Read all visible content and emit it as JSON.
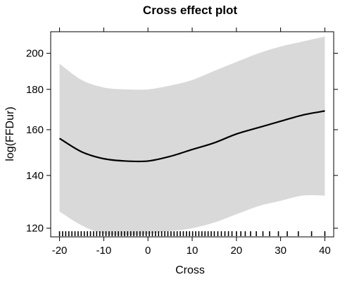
{
  "chart_data": {
    "type": "line",
    "title": "Cross effect plot",
    "xlabel": "Cross",
    "ylabel": "log(FFDur)",
    "y_scale": "log",
    "xlim": [
      -22,
      42
    ],
    "ylim": [
      117,
      213
    ],
    "x_ticks": [
      -20,
      -10,
      0,
      10,
      20,
      30,
      40
    ],
    "y_ticks": [
      120,
      140,
      160,
      180,
      200
    ],
    "series": [
      {
        "x": [
          -20,
          -15,
          -10,
          -5,
          0,
          5,
          10,
          15,
          20,
          25,
          30,
          35,
          40
        ],
        "y": [
          156,
          150,
          147,
          146,
          146,
          148,
          151,
          154,
          158,
          161,
          164,
          167,
          169
        ],
        "lower": [
          126,
          121,
          118,
          117.5,
          118,
          119,
          120,
          122,
          125,
          128,
          130,
          132,
          132
        ],
        "upper": [
          194,
          185,
          181,
          180,
          180,
          182,
          185,
          190,
          195,
          200,
          204,
          207,
          210
        ]
      }
    ],
    "colors": {
      "line": "#000000",
      "band": "#d9d9d9",
      "frame": "#000000"
    },
    "rug_x": [
      -20,
      -19.3,
      -18.6,
      -17.9,
      -17.2,
      -16.5,
      -15.8,
      -15.1,
      -14.4,
      -13.7,
      -13,
      -12.3,
      -11.6,
      -10.9,
      -10.2,
      -9.5,
      -8.8,
      -8.1,
      -7.4,
      -6.7,
      -6,
      -5.3,
      -4.6,
      -3.9,
      -3.2,
      -2.5,
      -1.8,
      -1.1,
      -0.4,
      0.3,
      1,
      1.7,
      2.4,
      3.1,
      3.8,
      4.5,
      5.2,
      5.9,
      6.6,
      7.3,
      8,
      8.7,
      9.4,
      10.1,
      10.8,
      11.5,
      12.2,
      12.9,
      13.6,
      14.3,
      15,
      15.8,
      16.6,
      17.4,
      18.2,
      19,
      20,
      21,
      22,
      23.2,
      24.5,
      26,
      27.5,
      29.5,
      31.5,
      34,
      37,
      40
    ]
  }
}
